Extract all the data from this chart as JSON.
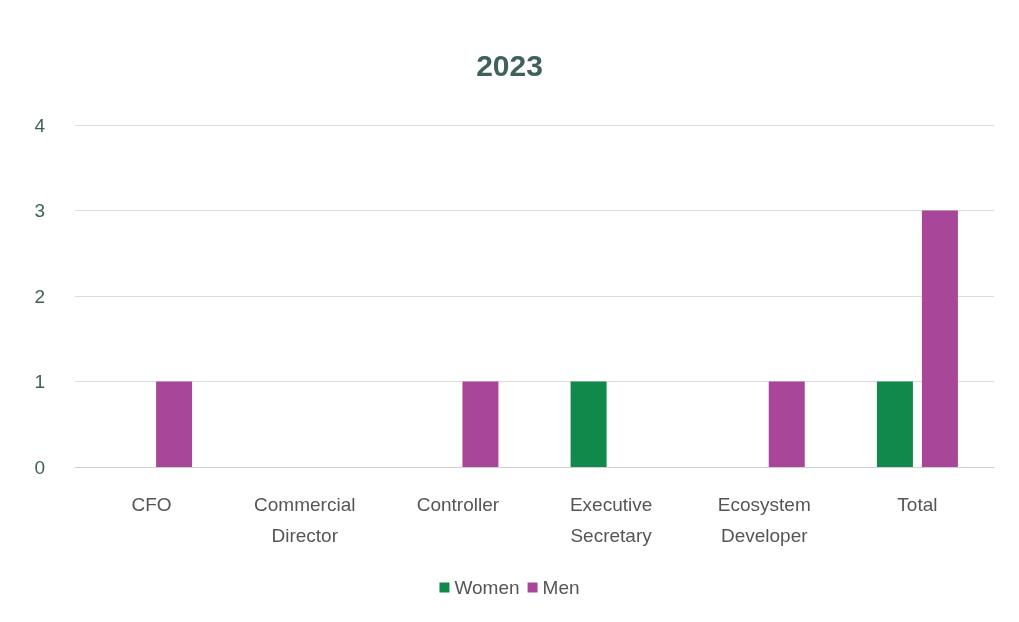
{
  "chart_data": {
    "type": "bar",
    "title": "2023",
    "categories": [
      "CFO",
      "Commercial\nDirector",
      "Controller",
      "Executive\nSecretary",
      "Ecosystem\nDeveloper",
      "Total"
    ],
    "series": [
      {
        "name": "Women",
        "color": "#11894a",
        "values": [
          0,
          0,
          0,
          1,
          0,
          1
        ]
      },
      {
        "name": "Men",
        "color": "#a8469a",
        "values": [
          1,
          0,
          1,
          0,
          1,
          3
        ]
      }
    ],
    "ylim": [
      0,
      4
    ],
    "yticks": [
      0,
      1,
      2,
      3,
      4
    ],
    "grid": "y",
    "legend": "bottom"
  }
}
